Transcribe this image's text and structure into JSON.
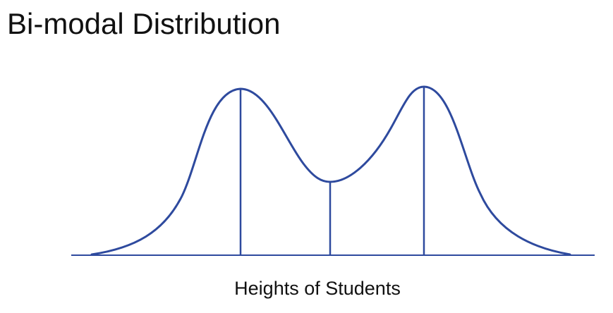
{
  "title": "Bi-modal Distribution",
  "xlabel": "Heights of Students",
  "colors": {
    "curve": "#2E4A9E",
    "axis": "#2E4A9E",
    "text": "#111111"
  }
}
